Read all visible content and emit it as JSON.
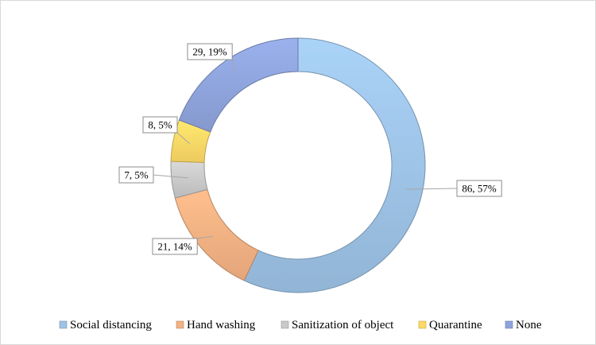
{
  "chart_data": {
    "type": "pie",
    "title": "",
    "legend_position": "bottom",
    "series": [
      {
        "name": "Social distancing",
        "value": 86,
        "percent": "57%",
        "label": "86, 57%",
        "color": "#9dc3e6"
      },
      {
        "name": "Hand washing",
        "value": 21,
        "percent": "14%",
        "label": "21, 14%",
        "color": "#f4b183"
      },
      {
        "name": "Sanitization of object",
        "value": 7,
        "percent": "5%",
        "label": "7, 5%",
        "color": "#c9c9c9"
      },
      {
        "name": "Quarantine",
        "value": 8,
        "percent": "5%",
        "label": "8, 5%",
        "color": "#ffd966"
      },
      {
        "name": "None",
        "value": 29,
        "percent": "19%",
        "label": "29, 19%",
        "color": "#8fa4dc"
      }
    ]
  }
}
